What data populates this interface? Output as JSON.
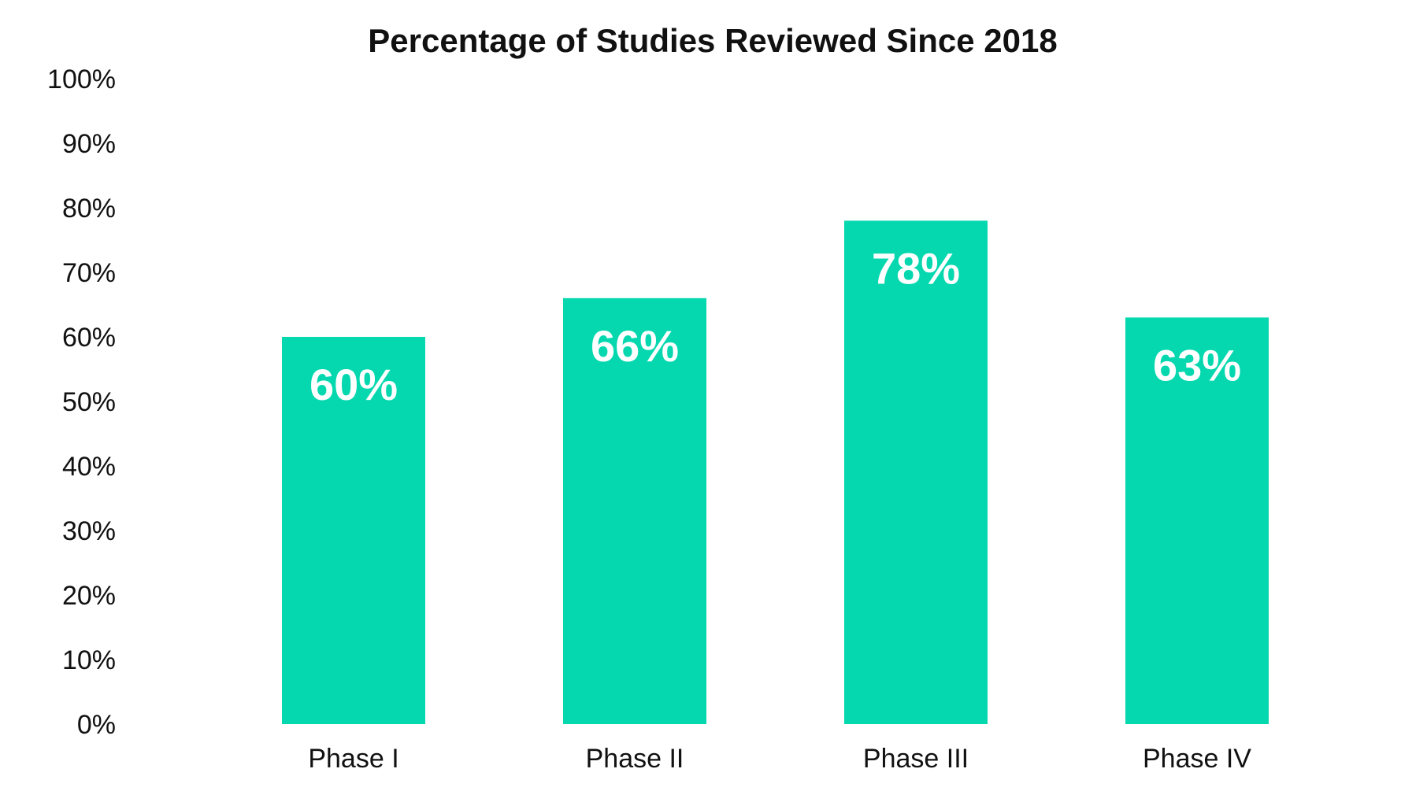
{
  "chart_data": {
    "type": "bar",
    "title": "Percentage of Studies Reviewed Since 2018",
    "xlabel": "",
    "ylabel": "",
    "categories": [
      "Phase I",
      "Phase II",
      "Phase III",
      "Phase IV"
    ],
    "values": [
      60,
      66,
      78,
      63
    ],
    "value_labels": [
      "60%",
      "66%",
      "78%",
      "63%"
    ],
    "ylim": [
      0,
      100
    ],
    "yticks": [
      0,
      10,
      20,
      30,
      40,
      50,
      60,
      70,
      80,
      90,
      100
    ],
    "ytick_labels": [
      "0%",
      "10%",
      "20%",
      "30%",
      "40%",
      "50%",
      "60%",
      "70%",
      "80%",
      "90%",
      "100%"
    ],
    "grid": false,
    "legend": "none",
    "bar_color": "#05D8AF",
    "label_color": "#FFFFFF",
    "text_color": "#111111"
  }
}
